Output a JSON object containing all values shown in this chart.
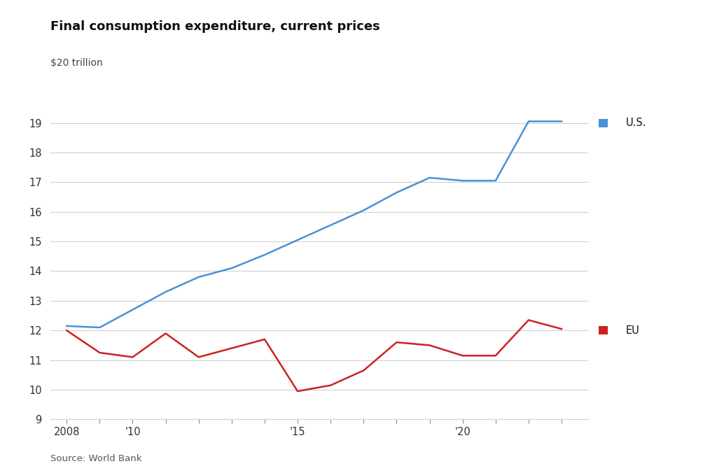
{
  "title": "Final consumption expenditure, current prices",
  "ylabel": "$20 trillion",
  "source": "Source: World Bank",
  "years": [
    2008,
    2009,
    2010,
    2011,
    2012,
    2013,
    2014,
    2015,
    2016,
    2017,
    2018,
    2019,
    2020,
    2021,
    2022,
    2023
  ],
  "us_values": [
    12.15,
    12.1,
    12.7,
    13.3,
    13.8,
    14.1,
    14.55,
    15.05,
    15.55,
    16.05,
    16.65,
    17.15,
    17.05,
    17.05,
    19.05,
    19.05
  ],
  "eu_values": [
    12.0,
    11.25,
    11.1,
    11.9,
    11.1,
    11.4,
    11.7,
    9.95,
    10.15,
    10.65,
    11.6,
    11.5,
    11.15,
    11.15,
    12.35,
    12.05
  ],
  "us_color": "#4a90d9",
  "eu_color": "#cc2222",
  "ylim": [
    9,
    20
  ],
  "yticks": [
    9,
    10,
    11,
    12,
    13,
    14,
    15,
    16,
    17,
    18,
    19
  ],
  "background_color": "#ffffff",
  "grid_color": "#d0d0d0",
  "legend_us": "U.S.",
  "legend_eu": "EU",
  "line_width": 1.8,
  "title_fontsize": 13,
  "label_fontsize": 10.5,
  "tick_fontsize": 10.5
}
